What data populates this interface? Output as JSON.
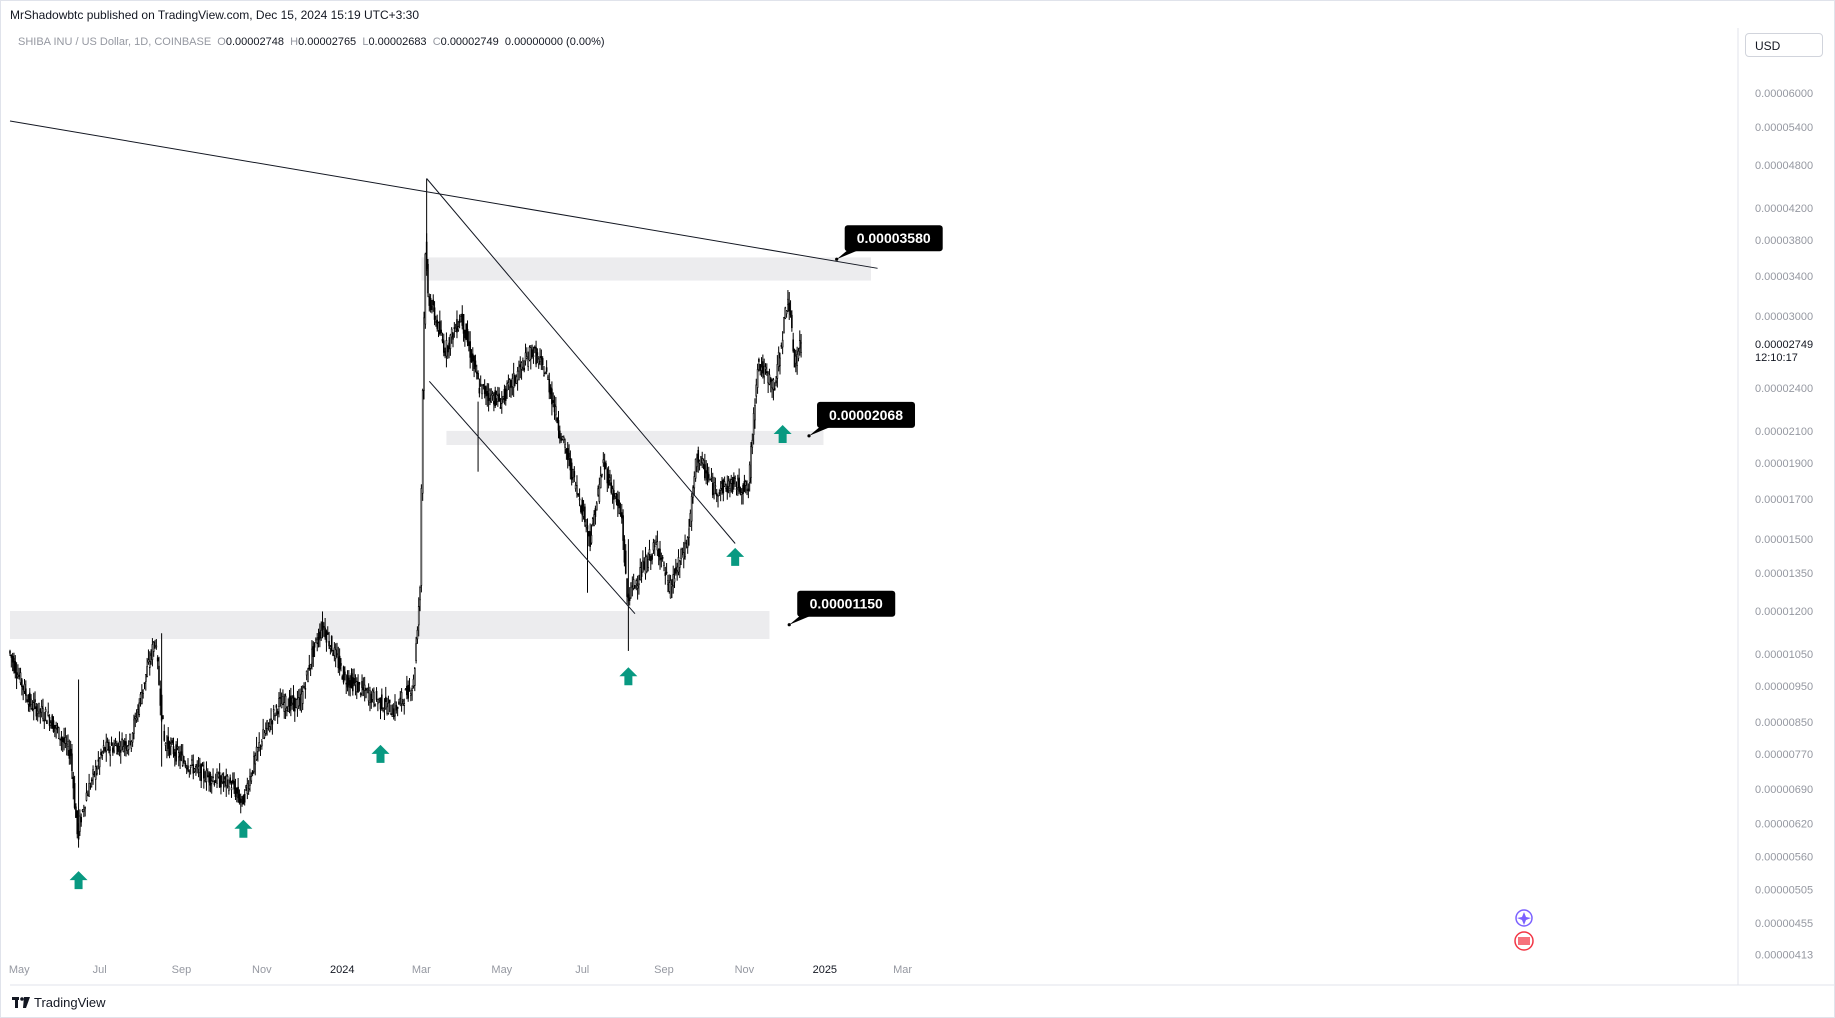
{
  "header": {
    "publisher_line": "MrShadowbtc published on TradingView.com, Dec 15, 2024 15:19 UTC+3:30",
    "symbol_name": "SHIBA INU / US Dollar, 1D, COINBASE",
    "open_label": "O",
    "open_value": "0.00002748",
    "high_label": "H",
    "high_value": "0.00002765",
    "low_label": "L",
    "low_value": "0.00002683",
    "close_label": "C",
    "close_value": "0.00002749",
    "change_value": "0.00000000 (0.00%)"
  },
  "toolbar": {
    "currency_label": "USD"
  },
  "footer": {
    "brand": "TradingView"
  },
  "colors": {
    "candle": "#000000",
    "zone": "#ececee",
    "arrow": "#089981",
    "callout": "#000000",
    "axis_text": "#9598a1"
  },
  "chart_data": {
    "type": "candlestick",
    "title": "SHIBA INU / US Dollar, 1D, COINBASE",
    "y_scale": "log",
    "y_ticks": [
      "0.00006000",
      "0.00005400",
      "0.00004800",
      "0.00004200",
      "0.00003800",
      "0.00003400",
      "0.00003000",
      "0.00002400",
      "0.00002100",
      "0.00001900",
      "0.00001700",
      "0.00001500",
      "0.00001350",
      "0.00001200",
      "0.00001050",
      "0.00000950",
      "0.00000850",
      "0.00000770",
      "0.00000690",
      "0.00000620",
      "0.00000560",
      "0.00000505",
      "0.00000455",
      "0.00000413"
    ],
    "y_tick_values": [
      6e-05,
      5.4e-05,
      4.8e-05,
      4.2e-05,
      3.8e-05,
      3.4e-05,
      3e-05,
      2.4e-05,
      2.1e-05,
      1.9e-05,
      1.7e-05,
      1.5e-05,
      1.35e-05,
      1.2e-05,
      1.05e-05,
      9.5e-06,
      8.5e-06,
      7.7e-06,
      6.9e-06,
      6.2e-06,
      5.6e-06,
      5.05e-06,
      4.55e-06,
      4.13e-06
    ],
    "x_ticks": [
      "May",
      "Jul",
      "Sep",
      "Nov",
      "2024",
      "Mar",
      "May",
      "Jul",
      "Sep",
      "Nov",
      "2025",
      "Mar"
    ],
    "x_tick_dates": [
      "2023-05-01",
      "2023-07-01",
      "2023-09-01",
      "2023-11-01",
      "2024-01-01",
      "2024-03-01",
      "2024-05-01",
      "2024-07-01",
      "2024-09-01",
      "2024-11-01",
      "2025-01-01",
      "2025-03-01"
    ],
    "last_price": "0.00002749",
    "countdown": "12:10:17",
    "price_path": [
      [
        "2023-04-24",
        1.06e-05
      ],
      [
        "2023-05-10",
        9e-06
      ],
      [
        "2023-05-25",
        8.6e-06
      ],
      [
        "2023-06-10",
        7.7e-06
      ],
      [
        "2023-06-15",
        6e-06
      ],
      [
        "2023-06-22",
        6.8e-06
      ],
      [
        "2023-07-05",
        7.8e-06
      ],
      [
        "2023-07-25",
        8e-06
      ],
      [
        "2023-08-07",
        1e-05
      ],
      [
        "2023-08-13",
        1.1e-05
      ],
      [
        "2023-08-20",
        8e-06
      ],
      [
        "2023-09-05",
        7.5e-06
      ],
      [
        "2023-09-20",
        7.2e-06
      ],
      [
        "2023-10-10",
        7e-06
      ],
      [
        "2023-10-18",
        6.6e-06
      ],
      [
        "2023-11-01",
        8e-06
      ],
      [
        "2023-11-15",
        9e-06
      ],
      [
        "2023-12-01",
        9e-06
      ],
      [
        "2023-12-10",
        1.05e-05
      ],
      [
        "2023-12-18",
        1.15e-05
      ],
      [
        "2024-01-03",
        9.8e-06
      ],
      [
        "2024-01-20",
        9.3e-06
      ],
      [
        "2024-02-10",
        8.8e-06
      ],
      [
        "2024-02-25",
        9.6e-06
      ],
      [
        "2024-03-01",
        1.3e-05
      ],
      [
        "2024-03-03",
        2.4e-05
      ],
      [
        "2024-03-05",
        3.7e-05
      ],
      [
        "2024-03-07",
        3.2e-05
      ],
      [
        "2024-03-20",
        2.7e-05
      ],
      [
        "2024-04-01",
        3e-05
      ],
      [
        "2024-04-15",
        2.4e-05
      ],
      [
        "2024-05-01",
        2.3e-05
      ],
      [
        "2024-05-25",
        2.7e-05
      ],
      [
        "2024-06-05",
        2.5e-05
      ],
      [
        "2024-06-15",
        2.1e-05
      ],
      [
        "2024-06-30",
        1.7e-05
      ],
      [
        "2024-07-08",
        1.5e-05
      ],
      [
        "2024-07-18",
        1.9e-05
      ],
      [
        "2024-08-01",
        1.6e-05
      ],
      [
        "2024-08-05",
        1.25e-05
      ],
      [
        "2024-08-20",
        1.4e-05
      ],
      [
        "2024-08-28",
        1.48e-05
      ],
      [
        "2024-09-06",
        1.28e-05
      ],
      [
        "2024-09-20",
        1.5e-05
      ],
      [
        "2024-09-27",
        1.95e-05
      ],
      [
        "2024-10-10",
        1.75e-05
      ],
      [
        "2024-10-25",
        1.78e-05
      ],
      [
        "2024-11-05",
        1.75e-05
      ],
      [
        "2024-11-12",
        2.6e-05
      ],
      [
        "2024-11-25",
        2.4e-05
      ],
      [
        "2024-12-05",
        3.2e-05
      ],
      [
        "2024-12-10",
        2.6e-05
      ],
      [
        "2024-12-15",
        2.75e-05
      ]
    ],
    "zones": [
      {
        "from": "2023-04-24",
        "to": "2024-11-20",
        "low": 1.1e-05,
        "high": 1.2e-05
      },
      {
        "from": "2024-03-01",
        "to": "2025-02-05",
        "low": 3.35e-05,
        "high": 3.6e-05
      },
      {
        "from": "2024-03-20",
        "to": "2024-12-31",
        "low": 2.01e-05,
        "high": 2.1e-05
      }
    ],
    "trendlines": [
      {
        "from": [
          "2023-04-24",
          5.5e-05
        ],
        "to": [
          "2025-02-10",
          3.48e-05
        ]
      },
      {
        "from": [
          "2024-03-05",
          4.6e-05
        ],
        "to": [
          "2024-10-25",
          1.48e-05
        ]
      },
      {
        "from": [
          "2024-03-07",
          2.45e-05
        ],
        "to": [
          "2024-08-10",
          1.19e-05
        ]
      }
    ],
    "callouts": [
      {
        "text": "0.00003580",
        "date": "2025-01-10",
        "price": 3.58e-05
      },
      {
        "text": "0.00002068",
        "date": "2024-12-20",
        "price": 2.068e-05
      },
      {
        "text": "0.00001150",
        "date": "2024-12-05",
        "price": 1.15e-05
      }
    ],
    "arrows": [
      {
        "date": "2023-06-15",
        "price": 5.2e-06
      },
      {
        "date": "2023-10-18",
        "price": 6.1e-06
      },
      {
        "date": "2024-01-30",
        "price": 7.7e-06
      },
      {
        "date": "2024-08-05",
        "price": 9.8e-06
      },
      {
        "date": "2024-10-25",
        "price": 1.42e-05
      },
      {
        "date": "2024-11-30",
        "price": 2.08e-05
      }
    ]
  }
}
